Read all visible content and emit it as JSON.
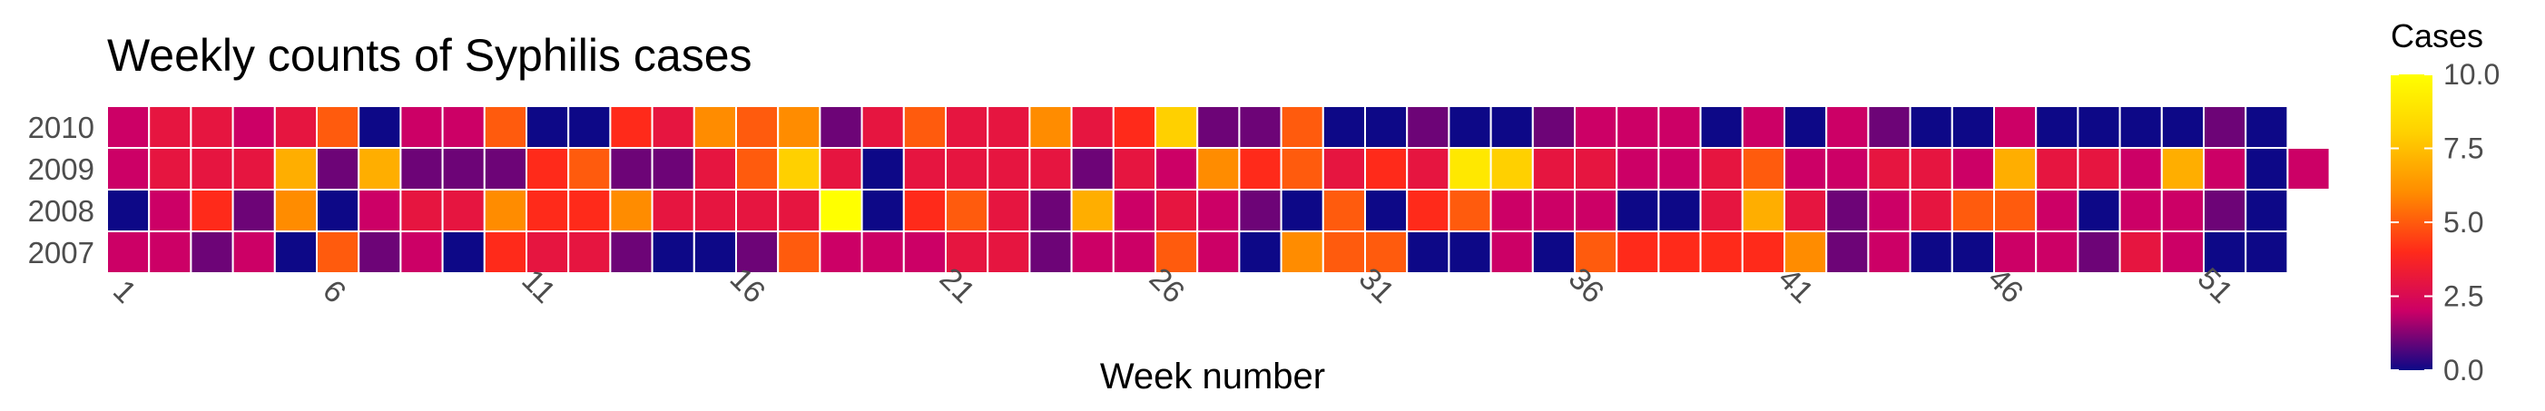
{
  "chart_data": {
    "type": "heatmap",
    "title": "Weekly counts of Syphilis cases",
    "xlabel": "Week number",
    "ylabel": "",
    "x_ticks": [
      "1",
      "6",
      "11",
      "16",
      "21",
      "26",
      "31",
      "36",
      "41",
      "46",
      "51"
    ],
    "legend": {
      "title": "Cases",
      "ticks": [
        "0.0",
        "2.5",
        "5.0",
        "7.5",
        "10.0"
      ],
      "range": [
        0,
        10
      ],
      "colors": [
        "#0d0887",
        "#cc0066",
        "#ff2a1a",
        "#ff8c00",
        "#ffd000",
        "#ffff00"
      ]
    },
    "series": [
      {
        "name": "2010",
        "weeks": 52,
        "values": [
          2,
          3,
          3,
          2,
          3,
          5,
          0,
          2,
          2,
          5,
          0,
          0,
          4,
          3,
          6,
          5,
          6,
          1,
          3,
          5,
          3,
          3,
          6,
          3,
          4,
          8,
          1,
          1,
          5,
          0,
          0,
          1,
          0,
          0,
          1,
          2,
          2,
          2,
          0,
          2,
          0,
          2,
          1,
          0,
          0,
          2,
          0,
          0,
          0,
          0,
          1,
          0
        ]
      },
      {
        "name": "2009",
        "weeks": 53,
        "values": [
          2,
          3,
          3,
          3,
          7,
          1,
          7,
          1,
          1,
          1,
          4,
          5,
          1,
          1,
          3,
          5,
          8,
          3,
          0,
          3,
          3,
          3,
          3,
          1,
          3,
          2,
          6,
          4,
          5,
          3,
          4,
          3,
          9,
          8,
          3,
          3,
          2,
          2,
          3,
          5,
          2,
          2,
          3,
          3,
          2,
          7,
          3,
          3,
          2,
          7,
          2,
          0,
          2
        ]
      },
      {
        "name": "2008",
        "weeks": 52,
        "values": [
          0,
          2,
          4,
          1,
          6,
          0,
          2,
          3,
          3,
          6,
          4,
          4,
          6,
          3,
          3,
          3,
          3,
          10,
          0,
          4,
          5,
          3,
          1,
          7,
          2,
          3,
          2,
          1,
          0,
          5,
          0,
          4,
          5,
          2,
          2,
          2,
          0,
          0,
          3,
          7,
          3,
          1,
          2,
          3,
          5,
          5,
          2,
          0,
          2,
          2,
          1,
          0
        ]
      },
      {
        "name": "2007",
        "weeks": 52,
        "values": [
          2,
          2,
          1,
          2,
          0,
          5,
          1,
          2,
          0,
          4,
          3,
          3,
          1,
          0,
          0,
          1,
          5,
          2,
          2,
          2,
          3,
          3,
          1,
          2,
          2,
          5,
          2,
          0,
          6,
          5,
          5,
          0,
          0,
          2,
          0,
          5,
          4,
          4,
          4,
          4,
          6,
          1,
          2,
          0,
          0,
          2,
          2,
          1,
          3,
          2,
          0,
          0
        ]
      }
    ]
  }
}
